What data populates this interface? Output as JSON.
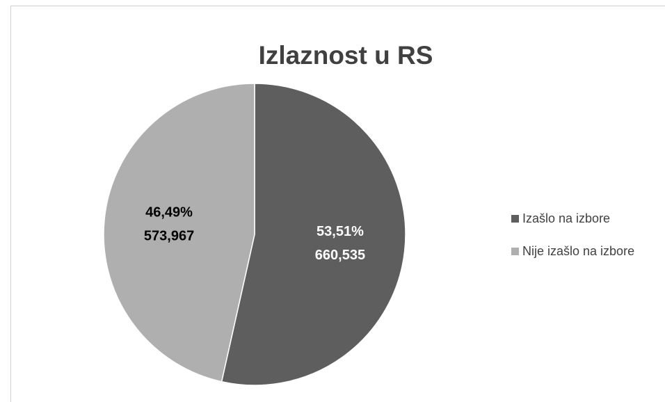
{
  "chart_data": {
    "type": "pie",
    "title": "Izlaznost u RS",
    "categories": [
      "Izašlo na izbore",
      "Nije izašlo na izbore"
    ],
    "values": [
      660535,
      573967
    ],
    "value_labels": [
      "660,535",
      "573,967"
    ],
    "percentages": [
      53.51,
      46.49
    ],
    "percentage_labels": [
      "53,51%",
      "46,49%"
    ],
    "colors": [
      "#5e5e5e",
      "#afafaf"
    ],
    "label_colors": [
      "#ffffff",
      "#000000"
    ],
    "legend": "right"
  }
}
